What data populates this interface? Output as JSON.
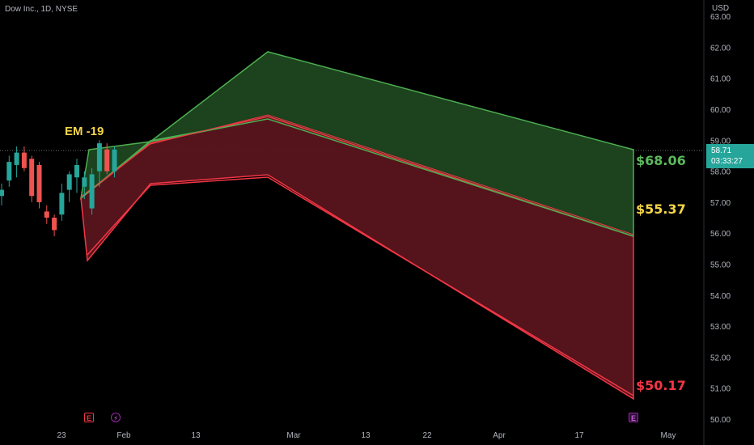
{
  "chart": {
    "title": "Dow Inc., 1D, NYSE",
    "currency": "USD",
    "last_price": "58.71",
    "countdown": "03:33:27",
    "em_label": "EM -19",
    "end_labels": {
      "upper": "$68.06",
      "mid": "$55.37",
      "lower": "$50.17"
    },
    "markers": {
      "earnings1": "E",
      "dividend": "⚡",
      "earnings2": "E"
    }
  },
  "colors": {
    "background": "#000000",
    "bull": "#26a69a",
    "bear": "#ef5350",
    "green_band": "#1e4620",
    "red_band": "#5a151d",
    "green_line": "#4caf50",
    "red_line": "#f23645",
    "em_label": "#f5d547",
    "upper_label": "#5cb85c",
    "mid_label": "#f5d547",
    "lower_label": "#f23645",
    "axis_text": "#b2b5be"
  },
  "chart_data": {
    "type": "line",
    "yaxis": {
      "ticks": [
        "50.00",
        "51.00",
        "52.00",
        "53.00",
        "54.00",
        "55.00",
        "56.00",
        "57.00",
        "58.00",
        "59.00",
        "60.00",
        "61.00",
        "62.00",
        "63.00"
      ]
    },
    "xaxis": {
      "ticks": [
        "23",
        "Feb",
        "13",
        "Mar",
        "13",
        "22",
        "Apr",
        "17",
        "May"
      ]
    },
    "candles": [
      {
        "open": 57.2,
        "high": 57.6,
        "low": 56.9,
        "close": 57.4
      },
      {
        "open": 57.7,
        "high": 58.5,
        "low": 57.5,
        "close": 58.3
      },
      {
        "open": 58.2,
        "high": 58.8,
        "low": 57.8,
        "close": 58.6
      },
      {
        "open": 58.6,
        "high": 58.8,
        "low": 58.0,
        "close": 58.1
      },
      {
        "open": 58.4,
        "high": 58.5,
        "low": 57.0,
        "close": 57.2
      },
      {
        "open": 58.2,
        "high": 58.3,
        "low": 56.8,
        "close": 57.0
      },
      {
        "open": 56.7,
        "high": 56.9,
        "low": 56.3,
        "close": 56.5
      },
      {
        "open": 56.5,
        "high": 56.6,
        "low": 55.9,
        "close": 56.1
      },
      {
        "open": 56.6,
        "high": 57.6,
        "low": 56.4,
        "close": 57.3
      },
      {
        "open": 57.4,
        "high": 58.0,
        "low": 57.0,
        "close": 57.9
      },
      {
        "open": 57.8,
        "high": 58.4,
        "low": 57.3,
        "close": 58.2
      },
      {
        "open": 57.5,
        "high": 58.0,
        "low": 57.1,
        "close": 57.8
      },
      {
        "open": 56.8,
        "high": 58.1,
        "low": 56.6,
        "close": 57.9
      },
      {
        "open": 58.0,
        "high": 59.0,
        "low": 57.5,
        "close": 58.9
      },
      {
        "open": 58.7,
        "high": 58.9,
        "low": 57.9,
        "close": 58.0
      },
      {
        "open": 58.0,
        "high": 58.8,
        "low": 57.8,
        "close": 58.7
      }
    ]
  }
}
